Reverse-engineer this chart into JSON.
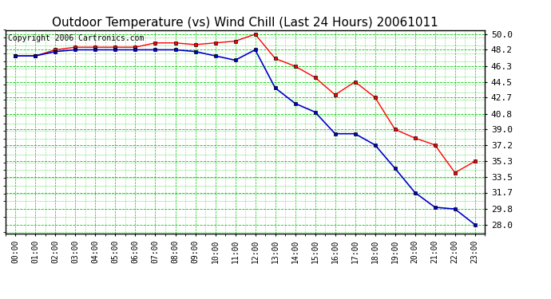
{
  "title": "Outdoor Temperature (vs) Wind Chill (Last 24 Hours) 20061011",
  "copyright": "Copyright 2006 Cartronics.com",
  "hours": [
    "00:00",
    "01:00",
    "02:00",
    "03:00",
    "04:00",
    "05:00",
    "06:00",
    "07:00",
    "08:00",
    "09:00",
    "10:00",
    "11:00",
    "12:00",
    "13:00",
    "14:00",
    "15:00",
    "16:00",
    "17:00",
    "18:00",
    "19:00",
    "20:00",
    "21:00",
    "22:00",
    "23:00"
  ],
  "temp": [
    47.5,
    47.5,
    48.2,
    48.5,
    48.5,
    48.5,
    48.5,
    49.0,
    49.0,
    48.8,
    49.0,
    49.2,
    50.0,
    47.2,
    46.3,
    45.0,
    43.0,
    44.5,
    42.7,
    39.0,
    38.0,
    37.2,
    34.0,
    35.3
  ],
  "windchill": [
    47.5,
    47.5,
    48.0,
    48.2,
    48.2,
    48.2,
    48.2,
    48.2,
    48.2,
    48.0,
    47.5,
    47.0,
    48.2,
    43.8,
    42.0,
    41.0,
    38.5,
    38.5,
    37.2,
    34.5,
    31.7,
    30.0,
    29.8,
    28.0
  ],
  "ylim_min": 27.0,
  "ylim_max": 50.5,
  "yticks": [
    28.0,
    29.8,
    31.7,
    33.5,
    35.3,
    37.2,
    39.0,
    40.8,
    42.7,
    44.5,
    46.3,
    48.2,
    50.0
  ],
  "temp_color": "#ff0000",
  "windchill_color": "#0000cc",
  "marker_color": "#000000",
  "bg_color": "#ffffff",
  "grid_color_major": "#00cc00",
  "grid_color_minor": "#00cc00",
  "title_fontsize": 11,
  "copyright_fontsize": 7,
  "tick_fontsize": 8
}
